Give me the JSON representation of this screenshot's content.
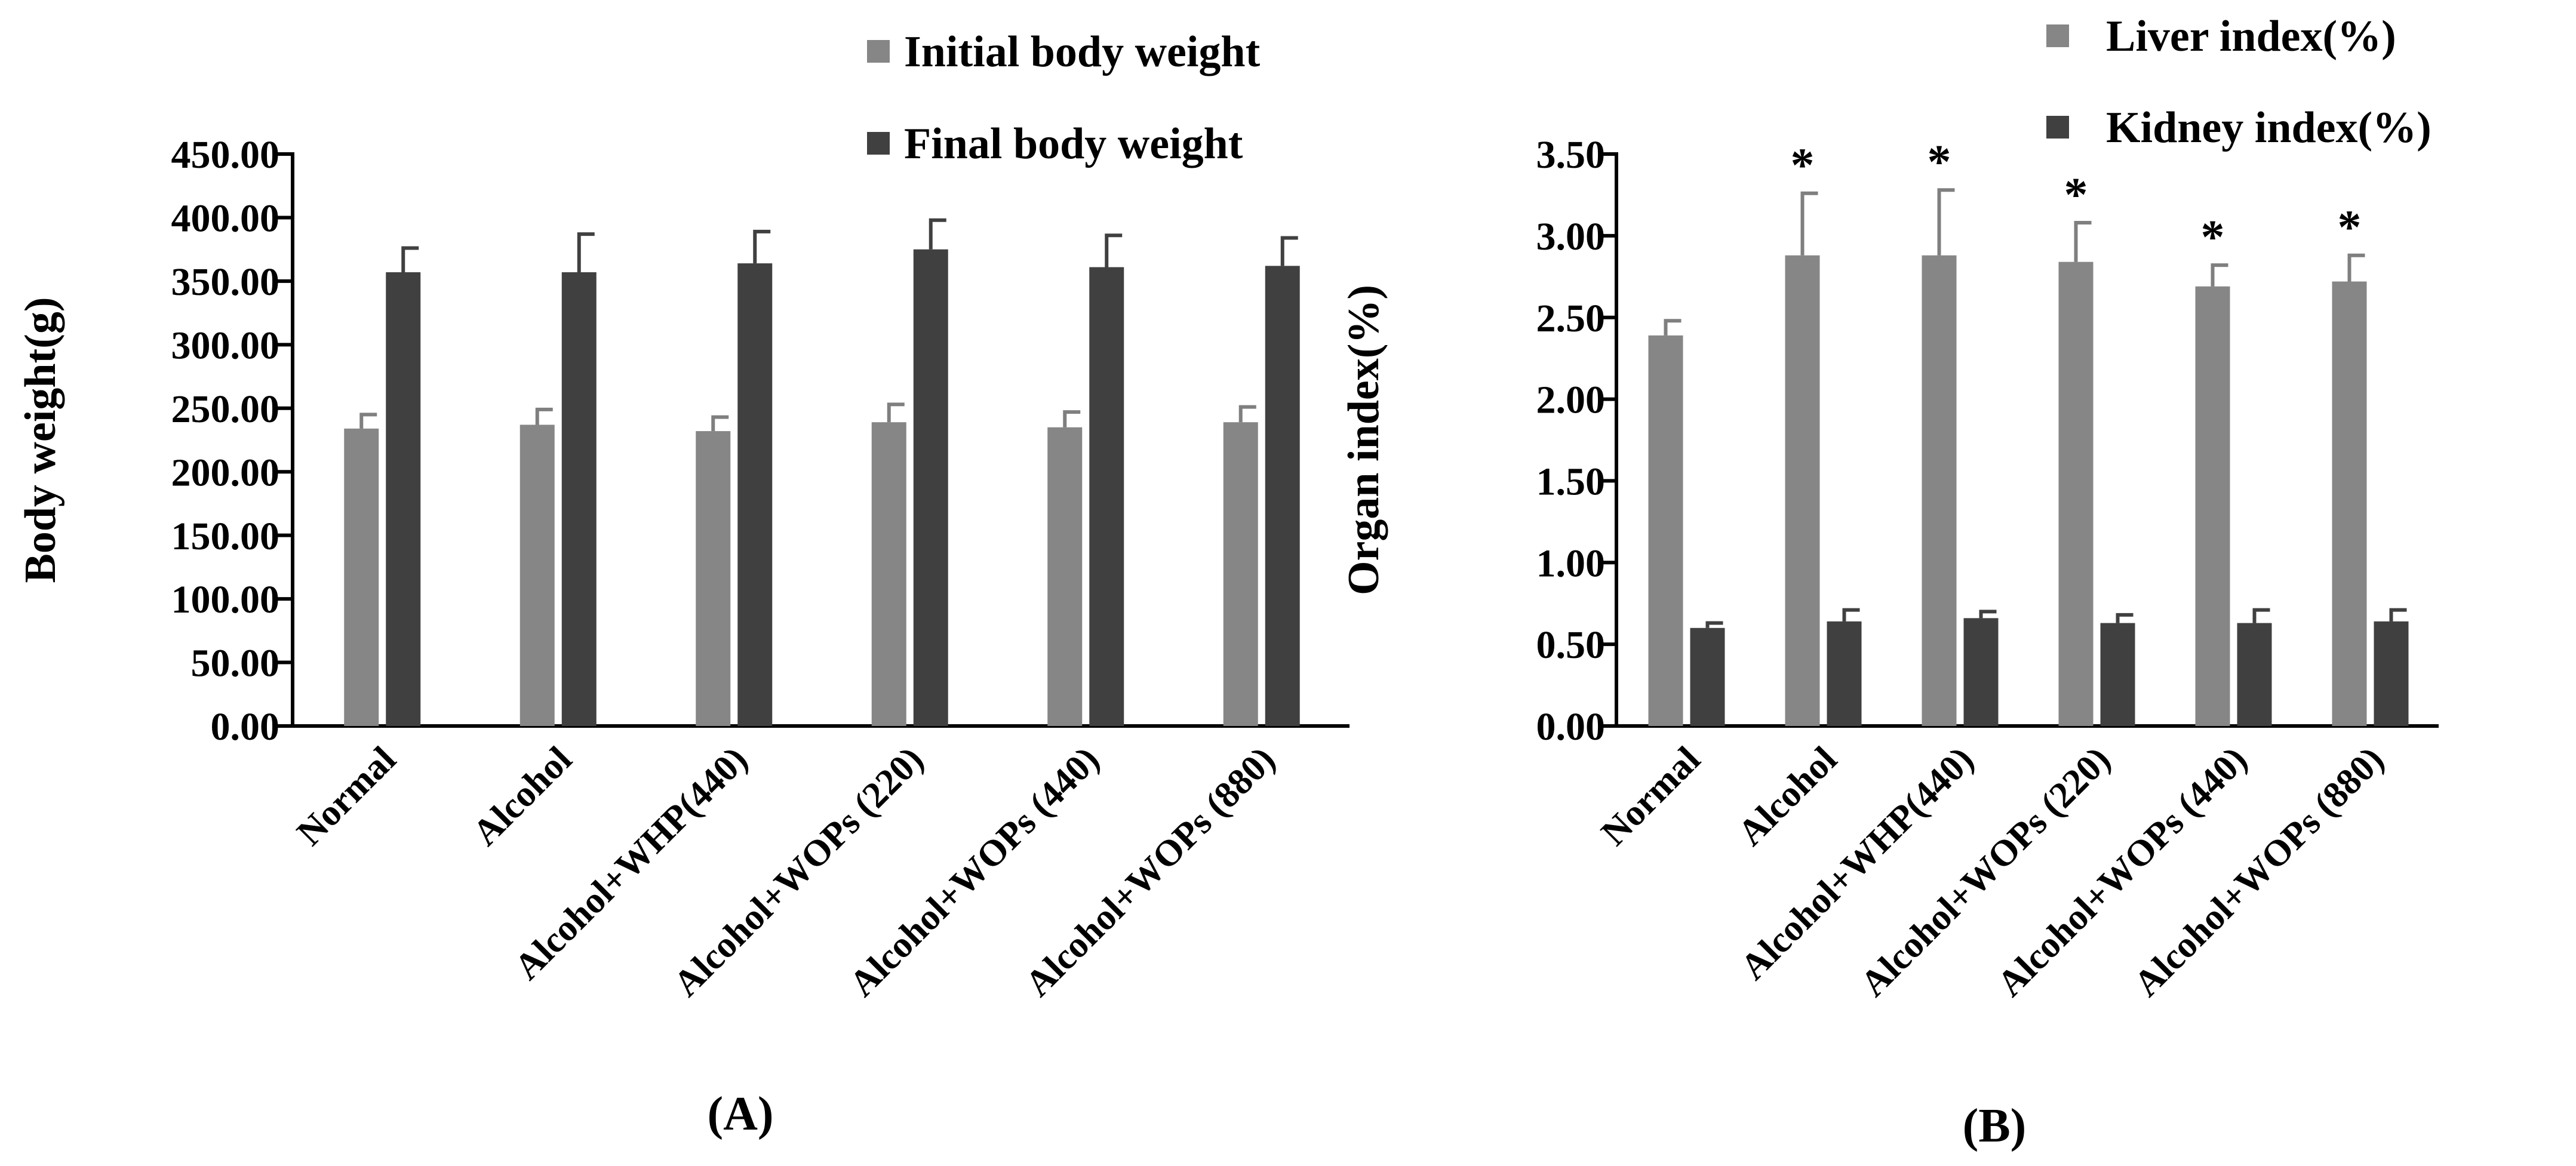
{
  "figure": {
    "panel_labels": [
      "(A)",
      "(B)"
    ]
  },
  "colors": {
    "light_series": "#868686",
    "dark_series": "#404040",
    "axis": "#000000",
    "text": "#000000"
  },
  "chart_data": [
    {
      "id": "A",
      "type": "bar",
      "panel_label": "(A)",
      "title": "",
      "xlabel": "",
      "ylabel": "Body weight(g)",
      "ylim": [
        0,
        450
      ],
      "yticks": [
        0,
        50,
        100,
        150,
        200,
        250,
        300,
        350,
        400,
        450
      ],
      "ytick_labels": [
        "0.00",
        "50.00",
        "100.00",
        "150.00",
        "200.00",
        "250.00",
        "300.00",
        "350.00",
        "400.00",
        "450.00"
      ],
      "categories": [
        "Normal",
        "Alcohol",
        "Alcohol+WHP(440)",
        "Alcohol+WOPs (220)",
        "Alcohol+WOPs (440)",
        "Alcohol+WOPs (880)"
      ],
      "legend_position": "top-right",
      "series": [
        {
          "name": "Initial body weight",
          "color": "#868686",
          "values": [
            234,
            237,
            232,
            239,
            235,
            239
          ],
          "errors": [
            11,
            12,
            11,
            14,
            12,
            12
          ],
          "annotations": [
            "",
            "",
            "",
            "",
            "",
            ""
          ]
        },
        {
          "name": "Final body weight",
          "color": "#404040",
          "values": [
            357,
            357,
            364,
            375,
            361,
            362
          ],
          "errors": [
            19,
            30,
            25,
            23,
            25,
            22
          ],
          "annotations": [
            "",
            "",
            "",
            "",
            "",
            ""
          ]
        }
      ]
    },
    {
      "id": "B",
      "type": "bar",
      "panel_label": "(B)",
      "title": "",
      "xlabel": "",
      "ylabel": "Organ index(%)",
      "ylim": [
        0,
        3.5
      ],
      "yticks": [
        0,
        0.5,
        1.0,
        1.5,
        2.0,
        2.5,
        3.0,
        3.5
      ],
      "ytick_labels": [
        "0.00",
        "0.50",
        "1.00",
        "1.50",
        "2.00",
        "2.50",
        "3.00",
        "3.50"
      ],
      "categories": [
        "Normal",
        "Alcohol",
        "Alcohol+WHP(440)",
        "Alcohol+WOPs (220)",
        "Alcohol+WOPs (440)",
        "Alcohol+WOPs (880)"
      ],
      "legend_position": "top-right",
      "series": [
        {
          "name": "Liver index(%)",
          "color": "#868686",
          "values": [
            2.39,
            2.88,
            2.88,
            2.84,
            2.69,
            2.72
          ],
          "errors": [
            0.09,
            0.38,
            0.4,
            0.24,
            0.13,
            0.16
          ],
          "annotations": [
            "",
            "*",
            "*",
            "*",
            "*",
            "*"
          ]
        },
        {
          "name": "Kidney index(%)",
          "color": "#404040",
          "values": [
            0.6,
            0.64,
            0.66,
            0.63,
            0.63,
            0.64
          ],
          "errors": [
            0.03,
            0.07,
            0.04,
            0.05,
            0.08,
            0.07
          ],
          "annotations": [
            "",
            "",
            "",
            "",
            "",
            ""
          ]
        }
      ]
    }
  ]
}
